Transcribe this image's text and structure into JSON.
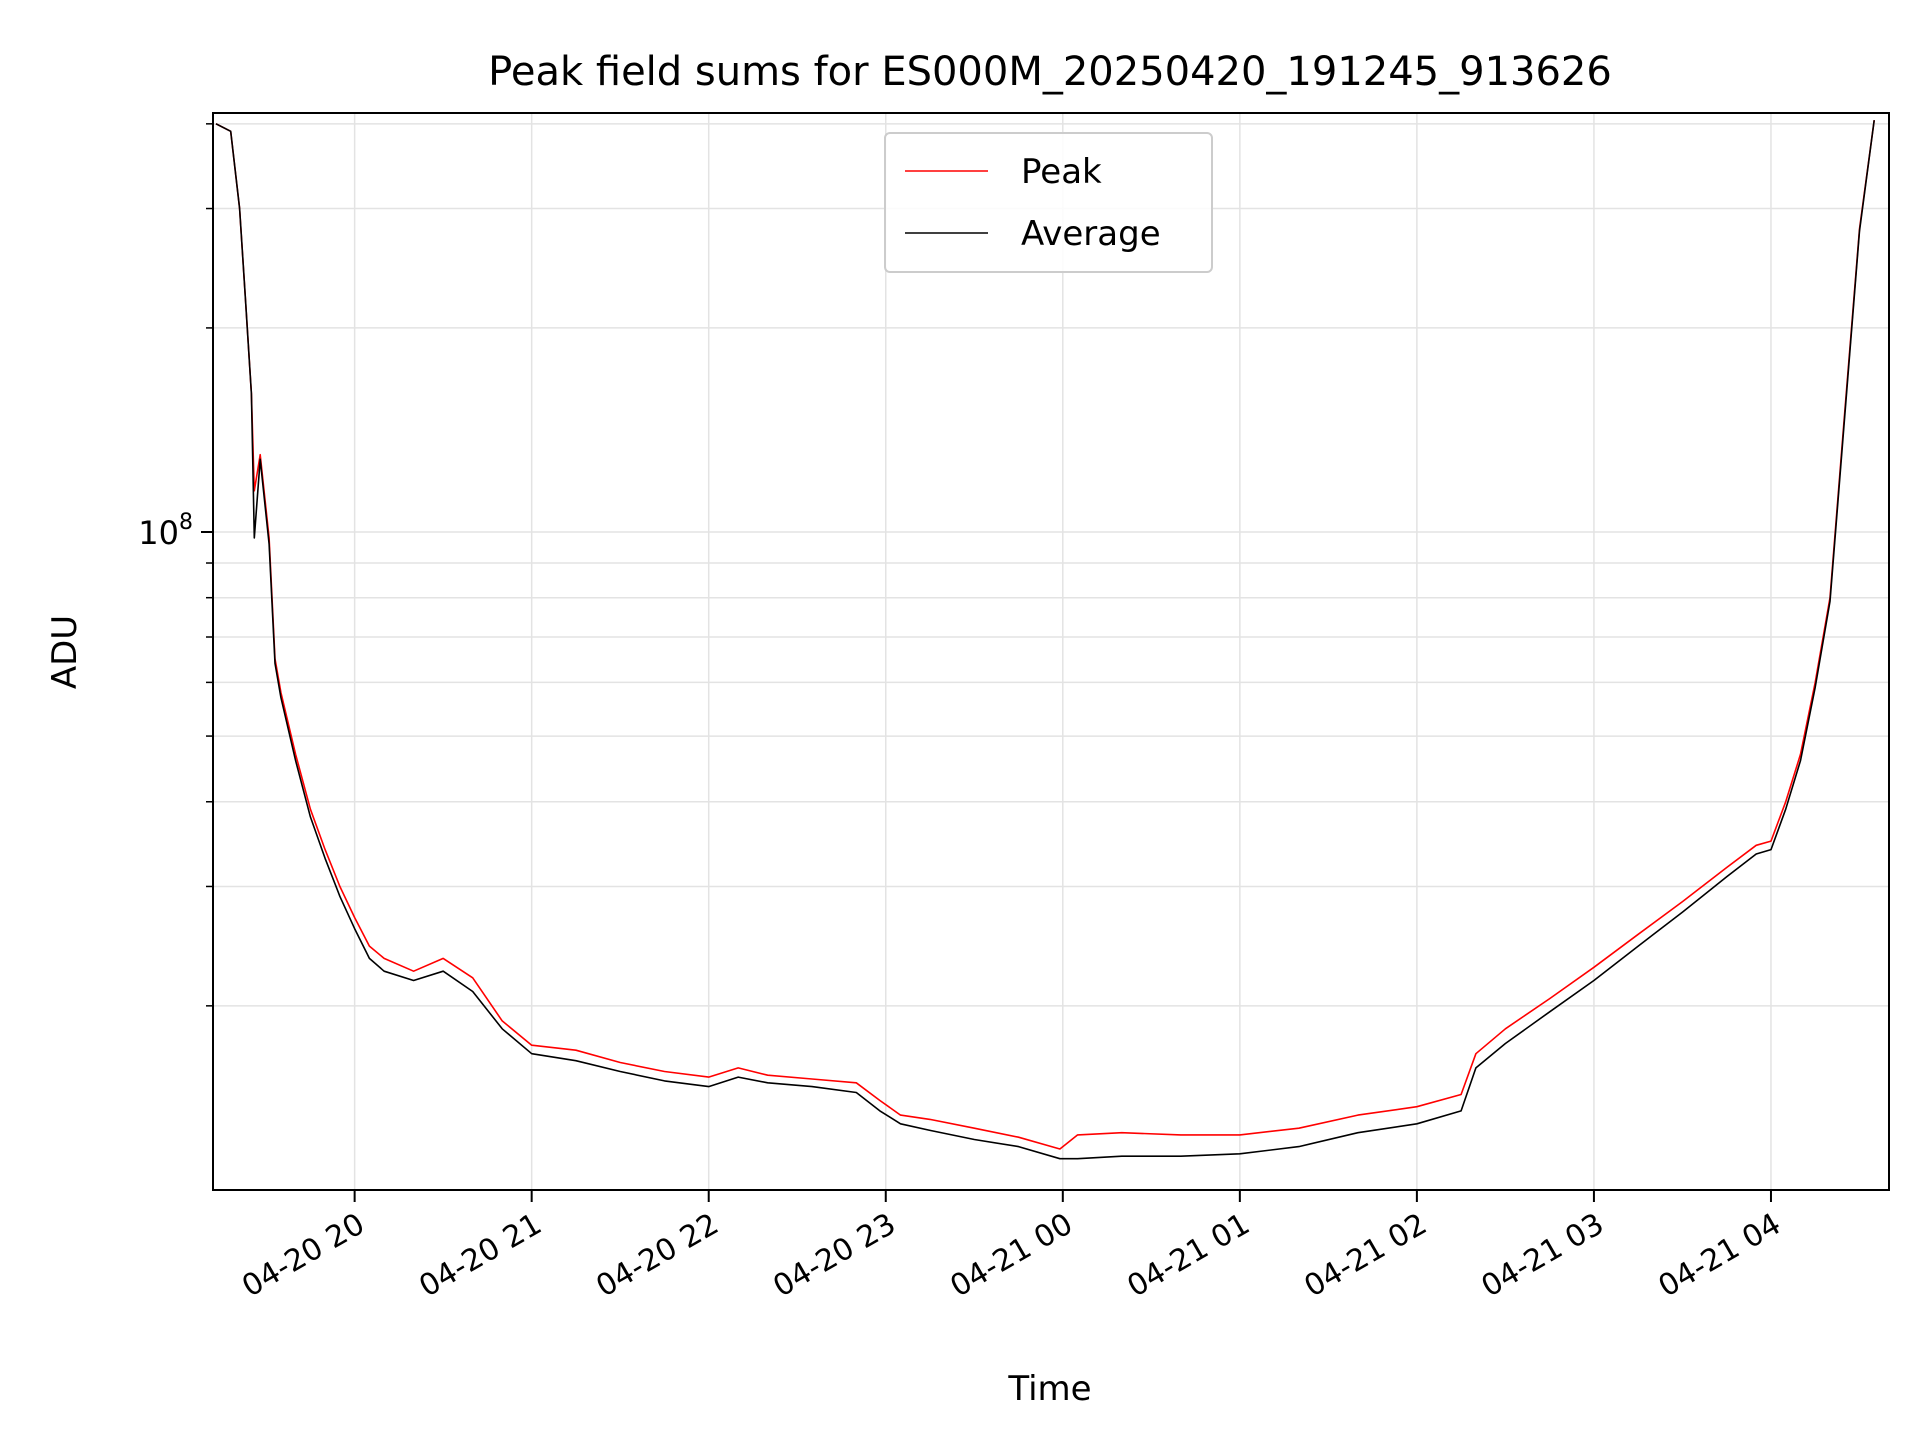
{
  "chart_data": {
    "type": "line",
    "title": "Peak field sums for ES000M_20250420_191245_913626",
    "xlabel": "Time",
    "ylabel": "ADU",
    "x_type": "time",
    "xlim": [
      "2025-04-20 19:12",
      "2025-04-21 04:40"
    ],
    "y_scale": "log",
    "ylim": [
      10700000.0,
      415000000.0
    ],
    "grid": true,
    "legend_position": "upper center",
    "x_ticks": [
      "04-20 20",
      "04-20 21",
      "04-20 22",
      "04-20 23",
      "04-21 00",
      "04-21 01",
      "04-21 02",
      "04-21 03",
      "04-21 04"
    ],
    "x_tick_times": [
      "2025-04-20 20:00",
      "2025-04-20 21:00",
      "2025-04-20 22:00",
      "2025-04-20 23:00",
      "2025-04-21 00:00",
      "2025-04-21 01:00",
      "2025-04-21 02:00",
      "2025-04-21 03:00",
      "2025-04-21 04:00"
    ],
    "y_ticks": [
      {
        "value": 100000000,
        "base": "10",
        "exp": "8"
      }
    ],
    "series": [
      {
        "name": "Peak",
        "color": "#ff0000",
        "x": [
          "2025-04-20 19:13",
          "2025-04-20 19:18",
          "2025-04-20 19:21",
          "2025-04-20 19:23",
          "2025-04-20 19:25",
          "2025-04-20 19:26",
          "2025-04-20 19:28",
          "2025-04-20 19:31",
          "2025-04-20 19:33",
          "2025-04-20 19:35",
          "2025-04-20 19:40",
          "2025-04-20 19:45",
          "2025-04-20 19:50",
          "2025-04-20 19:55",
          "2025-04-20 20:00",
          "2025-04-20 20:05",
          "2025-04-20 20:10",
          "2025-04-20 20:20",
          "2025-04-20 20:30",
          "2025-04-20 20:40",
          "2025-04-20 20:50",
          "2025-04-20 21:00",
          "2025-04-20 21:15",
          "2025-04-20 21:30",
          "2025-04-20 21:45",
          "2025-04-20 22:00",
          "2025-04-20 22:10",
          "2025-04-20 22:20",
          "2025-04-20 22:35",
          "2025-04-20 22:50",
          "2025-04-20 22:58",
          "2025-04-20 23:05",
          "2025-04-20 23:15",
          "2025-04-20 23:30",
          "2025-04-20 23:45",
          "2025-04-20 23:59",
          "2025-04-21 00:05",
          "2025-04-21 00:20",
          "2025-04-21 00:40",
          "2025-04-21 01:00",
          "2025-04-21 01:20",
          "2025-04-21 01:40",
          "2025-04-21 02:00",
          "2025-04-21 02:15",
          "2025-04-21 02:20",
          "2025-04-21 02:30",
          "2025-04-21 02:45",
          "2025-04-21 03:00",
          "2025-04-21 03:15",
          "2025-04-21 03:30",
          "2025-04-21 03:45",
          "2025-04-21 03:55",
          "2025-04-21 04:00",
          "2025-04-21 04:05",
          "2025-04-21 04:10",
          "2025-04-21 04:15",
          "2025-04-21 04:20",
          "2025-04-21 04:25",
          "2025-04-21 04:30",
          "2025-04-21 04:35"
        ],
        "y": [
          400000000,
          390000000,
          300000000,
          220000000,
          160000000,
          115000000,
          130000000,
          98000000,
          65000000,
          58000000,
          47000000,
          39000000,
          34000000,
          30000000,
          27000000,
          24500000,
          23500000,
          22500000,
          23500000,
          22000000,
          19000000,
          17500000,
          17200000,
          16500000,
          16000000,
          15700000,
          16200000,
          15800000,
          15600000,
          15400000,
          14500000,
          13800000,
          13600000,
          13200000,
          12800000,
          12300000,
          12900000,
          13000000,
          12900000,
          12900000,
          13200000,
          13800000,
          14200000,
          14800000,
          17000000,
          18500000,
          20500000,
          22800000,
          25500000,
          28500000,
          32000000,
          34500000,
          35000000,
          40000000,
          47000000,
          60000000,
          80000000,
          150000000,
          280000000,
          405000000
        ]
      },
      {
        "name": "Average",
        "color": "#000000",
        "x": [
          "2025-04-20 19:13",
          "2025-04-20 19:18",
          "2025-04-20 19:21",
          "2025-04-20 19:23",
          "2025-04-20 19:25",
          "2025-04-20 19:26",
          "2025-04-20 19:28",
          "2025-04-20 19:31",
          "2025-04-20 19:33",
          "2025-04-20 19:35",
          "2025-04-20 19:40",
          "2025-04-20 19:45",
          "2025-04-20 19:50",
          "2025-04-20 19:55",
          "2025-04-20 20:00",
          "2025-04-20 20:05",
          "2025-04-20 20:10",
          "2025-04-20 20:20",
          "2025-04-20 20:30",
          "2025-04-20 20:40",
          "2025-04-20 20:50",
          "2025-04-20 21:00",
          "2025-04-20 21:15",
          "2025-04-20 21:30",
          "2025-04-20 21:45",
          "2025-04-20 22:00",
          "2025-04-20 22:10",
          "2025-04-20 22:20",
          "2025-04-20 22:35",
          "2025-04-20 22:50",
          "2025-04-20 22:58",
          "2025-04-20 23:05",
          "2025-04-20 23:15",
          "2025-04-20 23:30",
          "2025-04-20 23:45",
          "2025-04-20 23:59",
          "2025-04-21 00:05",
          "2025-04-21 00:20",
          "2025-04-21 00:40",
          "2025-04-21 01:00",
          "2025-04-21 01:20",
          "2025-04-21 01:40",
          "2025-04-21 02:00",
          "2025-04-21 02:15",
          "2025-04-21 02:20",
          "2025-04-21 02:30",
          "2025-04-21 02:45",
          "2025-04-21 03:00",
          "2025-04-21 03:15",
          "2025-04-21 03:30",
          "2025-04-21 03:45",
          "2025-04-21 03:55",
          "2025-04-21 04:00",
          "2025-04-21 04:05",
          "2025-04-21 04:10",
          "2025-04-21 04:15",
          "2025-04-21 04:20",
          "2025-04-21 04:25",
          "2025-04-21 04:30",
          "2025-04-21 04:35"
        ],
        "y": [
          400000000,
          390000000,
          300000000,
          220000000,
          160000000,
          98000000,
          128000000,
          96000000,
          64000000,
          57000000,
          46000000,
          38000000,
          33000000,
          29000000,
          26000000,
          23500000,
          22500000,
          21800000,
          22500000,
          21000000,
          18500000,
          17000000,
          16600000,
          16000000,
          15500000,
          15200000,
          15700000,
          15400000,
          15200000,
          14900000,
          14000000,
          13400000,
          13100000,
          12700000,
          12400000,
          11900000,
          11900000,
          12000000,
          12000000,
          12100000,
          12400000,
          13000000,
          13400000,
          14000000,
          16200000,
          17600000,
          19600000,
          21800000,
          24500000,
          27500000,
          31000000,
          33500000,
          34000000,
          39000000,
          46000000,
          59000000,
          79000000,
          148000000,
          278000000,
          405000000
        ]
      }
    ]
  }
}
